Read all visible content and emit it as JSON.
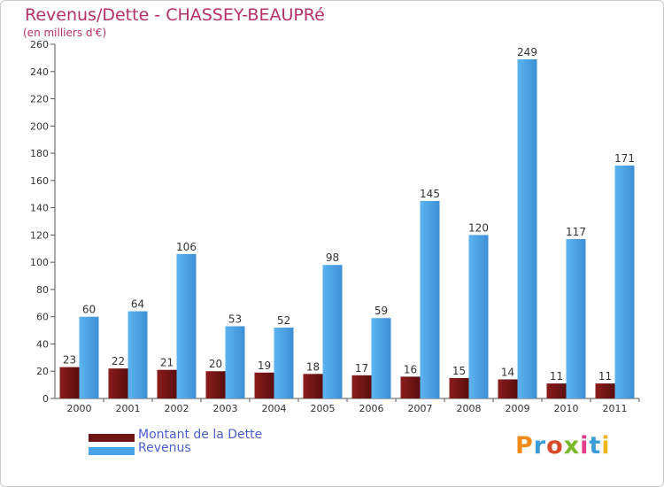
{
  "title": "Revenus/Dette - CHASSEY-BEAUPRé",
  "subtitle": "(en milliers d'€)",
  "colors": {
    "dette": "#6e1414",
    "revenus": "#4aa3e6",
    "title": "#b5306a",
    "legend_text": "#4a5fd0"
  },
  "legend": [
    {
      "label": "Montant de la Dette",
      "color": "#6e1414"
    },
    {
      "label": "Revenus",
      "color": "#4aa3e6"
    }
  ],
  "logo_text": "Proxiti",
  "chart_data": {
    "type": "bar",
    "categories": [
      "2000",
      "2001",
      "2002",
      "2003",
      "2004",
      "2005",
      "2006",
      "2007",
      "2008",
      "2009",
      "2010",
      "2011"
    ],
    "series": [
      {
        "name": "Montant de la Dette",
        "values": [
          23,
          22,
          21,
          20,
          19,
          18,
          17,
          16,
          15,
          14,
          11,
          11
        ]
      },
      {
        "name": "Revenus",
        "values": [
          60,
          64,
          106,
          53,
          52,
          98,
          59,
          145,
          120,
          249,
          117,
          171
        ]
      }
    ],
    "ylim": [
      0,
      260
    ],
    "yticks": [
      0,
      20,
      40,
      60,
      80,
      100,
      120,
      140,
      160,
      180,
      200,
      220,
      240,
      260
    ],
    "grid": false,
    "legend_position": "bottom-left"
  }
}
